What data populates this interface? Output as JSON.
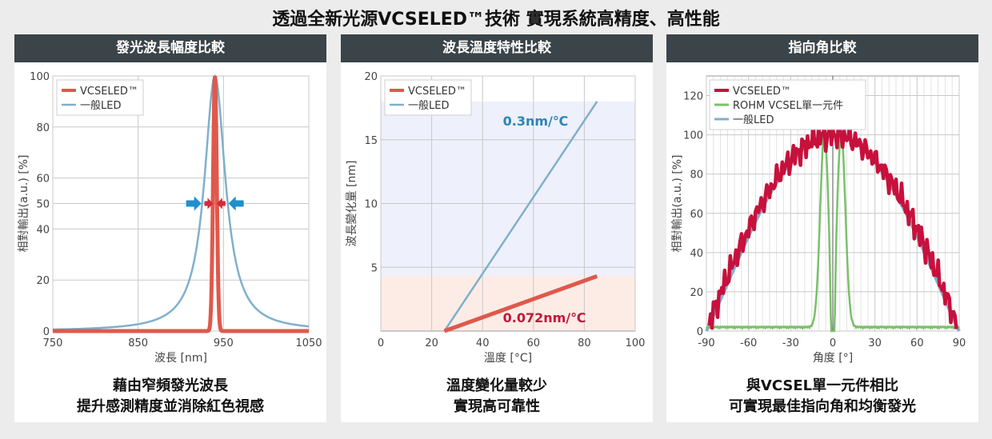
{
  "title": "透過全新光源VCSELED™技術 實現系統高精度、高性能",
  "colors": {
    "vcseled": "#e0584c",
    "general": "#7fb0cc",
    "rohm": "#79c06a",
    "vcseled_angle": "#c8103c",
    "header_bg": "#3a4449",
    "blue_band": "#eef0fb",
    "red_band": "#fdece6",
    "arrow_blue": "#1f8fcf",
    "arrow_red": "#d42a3c"
  },
  "panels": [
    {
      "header": "發光波長幅度比較",
      "caption_line1": "藉由窄頻發光波長",
      "caption_line2": "提升感測精度並消除紅色視感"
    },
    {
      "header": "波長溫度特性比較",
      "caption_line1": "溫度變化量較少",
      "caption_line2": "實現高可靠性"
    },
    {
      "header": "指向角比較",
      "caption_line1": "與VCSEL單一元件相比",
      "caption_line2": "可實現最佳指向角和均衡發光"
    }
  ],
  "chart_data": [
    {
      "type": "line",
      "xlabel": "波長 [nm]",
      "ylabel": "相對輸出(a.u.) [%]",
      "xlim": [
        750,
        1050
      ],
      "ylim": [
        0,
        100
      ],
      "xticks": [
        750,
        850,
        950,
        1050
      ],
      "yticks": [
        0,
        20,
        40,
        50,
        60,
        80,
        100
      ],
      "grid": true,
      "legend": "top-left",
      "series": [
        {
          "name": "VCSELED™",
          "peak_x": 940,
          "fwhm": 5,
          "peak_y": 100
        },
        {
          "name": "一般LED",
          "peak_x": 940,
          "fwhm": 30,
          "peak_y": 100
        }
      ]
    },
    {
      "type": "line",
      "xlabel": "溫度 [°C]",
      "ylabel": "波長變化量 [nm]",
      "xlim": [
        0,
        100
      ],
      "ylim": [
        0,
        20
      ],
      "xticks": [
        0,
        20,
        40,
        60,
        80,
        100
      ],
      "yticks": [
        5,
        10,
        15,
        20
      ],
      "grid": true,
      "legend": "top-left",
      "series": [
        {
          "name": "VCSELED™",
          "x": [
            25,
            85
          ],
          "y": [
            0,
            4.3
          ],
          "annotation": "0.072nm/℃"
        },
        {
          "name": "一般LED",
          "x": [
            25,
            85
          ],
          "y": [
            0,
            18
          ],
          "annotation": "0.3nm/℃"
        }
      ],
      "bands": [
        {
          "ymin": 0,
          "ymax": 4.3
        },
        {
          "ymin": 4.3,
          "ymax": 18
        }
      ]
    },
    {
      "type": "line",
      "xlabel": "角度 [°]",
      "ylabel": "相對輸出(a.u.) [%]",
      "xlim": [
        -90,
        90
      ],
      "ylim": [
        0,
        130
      ],
      "xticks": [
        -90,
        -60,
        -30,
        0,
        30,
        60,
        90
      ],
      "yticks": [
        0,
        20,
        40,
        60,
        80,
        100,
        120
      ],
      "grid": true,
      "legend": "top-left",
      "series": [
        {
          "name": "VCSELED™"
        },
        {
          "name": "ROHM VCSEL單一元件"
        },
        {
          "name": "一般LED"
        }
      ]
    }
  ]
}
